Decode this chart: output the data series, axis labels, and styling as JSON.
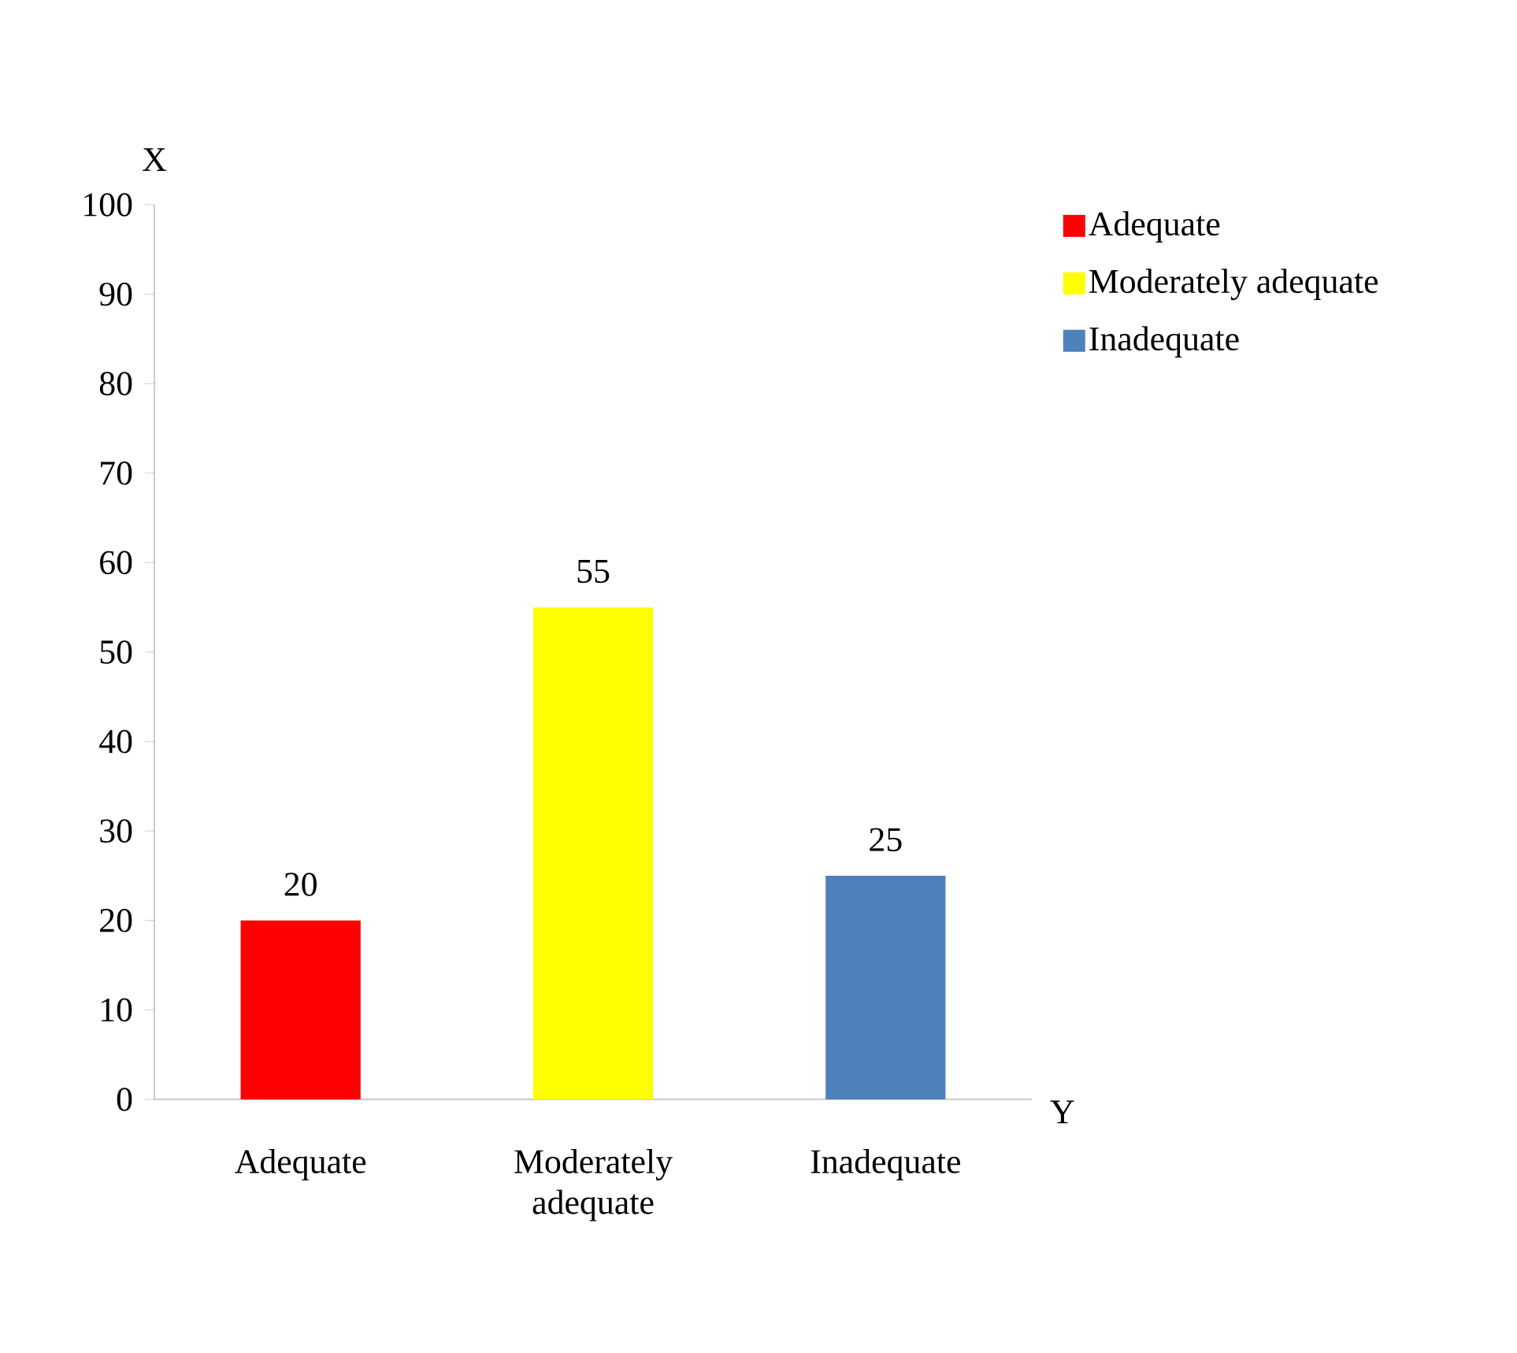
{
  "chart_data": {
    "type": "bar",
    "xlabel": "Y",
    "ylabel": "X",
    "categories": [
      "Adequate",
      "Moderately adequate",
      "Inadequate"
    ],
    "series": [
      {
        "name": "Adequate",
        "color": "#ff0000",
        "values": [
          20,
          null,
          null
        ]
      },
      {
        "name": "Moderately adequate",
        "color": "#ffff00",
        "values": [
          null,
          55,
          null
        ]
      },
      {
        "name": "Inadequate",
        "color": "#4f81bd",
        "values": [
          null,
          null,
          25
        ]
      }
    ],
    "ylim": [
      0,
      100
    ],
    "yticks": [
      0,
      10,
      20,
      30,
      40,
      50,
      60,
      70,
      80,
      90,
      100
    ],
    "data_labels": true,
    "legend": "top right",
    "grid": false
  }
}
